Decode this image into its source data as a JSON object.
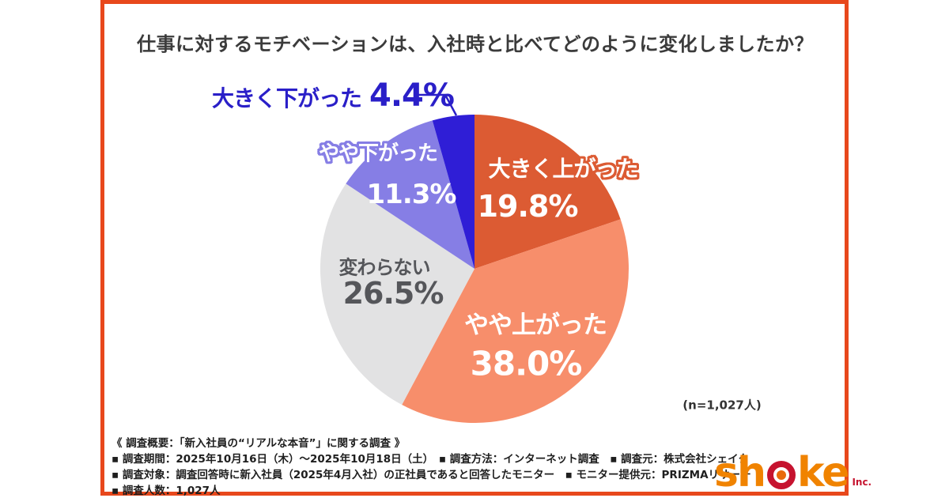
{
  "title": "仕事に対するモチベーションは、入社時と比べてどのように変化しましたか？",
  "palette": {
    "card_border": "#E8481C",
    "title_text": "#3B3B3B",
    "blue_label_text": "#2A1FC8",
    "gray_label_text": "#55565A",
    "logo_orange": "#F08300",
    "logo_red": "#C6132F",
    "logo_dot_orange": "#E96A0C"
  },
  "chart_data": {
    "type": "pie",
    "title": "仕事に対するモチベーションは、入社時と比べてどのように変化しましたか？",
    "start_angle_deg": -90,
    "direction": "clockwise",
    "sample_note": "(n=1,027人)",
    "segments": [
      {
        "id": "up-big",
        "label": "大きく上がった",
        "value": 19.8,
        "display": "19.8%",
        "color": "#DC5B33"
      },
      {
        "id": "up-slight",
        "label": "やや上がった",
        "value": 38.0,
        "display": "38.0%",
        "color": "#F78E6B"
      },
      {
        "id": "same",
        "label": "変わらない",
        "value": 26.5,
        "display": "26.5%",
        "color": "#E2E2E3"
      },
      {
        "id": "down-slight",
        "label": "やや下がった",
        "value": 11.3,
        "display": "11.3%",
        "color": "#867EE5"
      },
      {
        "id": "down-big",
        "label": "大きく下がった",
        "value": 4.4,
        "display": "4.4%",
        "color": "#2F1ED6"
      }
    ]
  },
  "footer": {
    "lines": [
      "《 調査概要：「新入社員の“リアルな本音”」に関する調査 》",
      "▪ 調査期間：2025年10月16日（木）～2025年10月18日（土）　▪ 調査方法：インターネット調査　▪ 調査元：株式会社シェイク",
      "▪ 調査対象：調査回答時に新入社員（2025年4月入社）の正社員であると回答したモニター　▪ モニター提供元：PRIZMAリサーチ",
      "▪ 調査人数：1,027人"
    ]
  },
  "logo": {
    "text_before": "sh",
    "text_after": "ke",
    "suffix": "Inc."
  }
}
